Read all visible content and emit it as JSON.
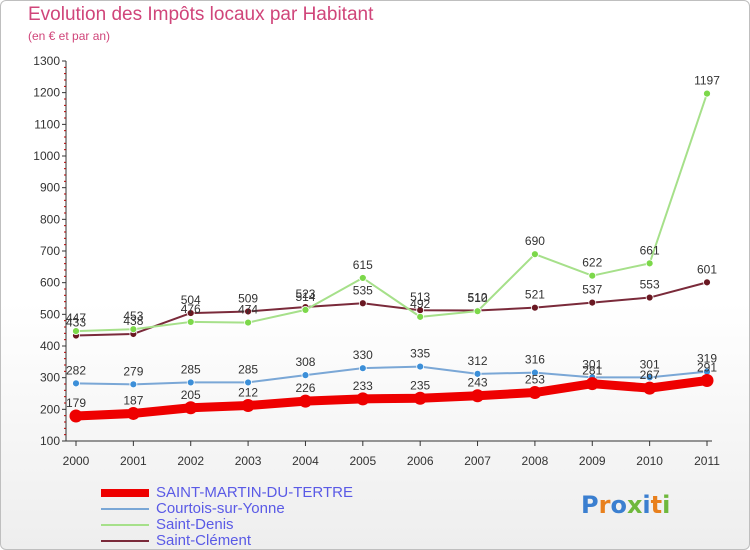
{
  "header": {
    "title": "Evolution des Impôts locaux par Habitant",
    "subtitle": "(en € et par an)"
  },
  "logo": {
    "text": "Proxiti",
    "letter_colors": [
      "#3b7fd0",
      "#e8801d",
      "#3b7fd0",
      "#6fb83c",
      "#3b7fd0",
      "#e8801d",
      "#6fb83c"
    ]
  },
  "chart_data": {
    "type": "line",
    "title": "Evolution des Impôts locaux par Habitant",
    "subtitle": "(en € et par an)",
    "xlabel": "",
    "ylabel": "",
    "x": [
      2000,
      2001,
      2002,
      2003,
      2004,
      2005,
      2006,
      2007,
      2008,
      2009,
      2010,
      2011
    ],
    "ylim": [
      100,
      1300
    ],
    "yticks": [
      100,
      200,
      300,
      400,
      500,
      600,
      700,
      800,
      900,
      1000,
      1100,
      1200,
      1300
    ],
    "grid": false,
    "legend_position": "bottom-left",
    "series": [
      {
        "name": "SAINT-MARTIN-DU-TERTRE",
        "color": "#ee0000",
        "marker_color": "#ee0000",
        "width": 9,
        "values": [
          179,
          187,
          205,
          212,
          226,
          233,
          235,
          243,
          253,
          281,
          267,
          291
        ]
      },
      {
        "name": "Courtois-sur-Yonne",
        "color": "#7aa7d6",
        "marker_color": "#3c8fd8",
        "width": 2,
        "values": [
          282,
          279,
          285,
          285,
          308,
          330,
          335,
          312,
          316,
          301,
          301,
          319
        ]
      },
      {
        "name": "Saint-Denis",
        "color": "#a6e08a",
        "marker_color": "#7cd84a",
        "width": 2,
        "values": [
          447,
          453,
          476,
          474,
          514,
          615,
          492,
          510,
          690,
          622,
          661,
          1197
        ]
      },
      {
        "name": "Saint-Clément",
        "color": "#7a2a3a",
        "marker_color": "#6a1822",
        "width": 2,
        "values": [
          433,
          438,
          504,
          509,
          523,
          535,
          513,
          512,
          521,
          537,
          553,
          601
        ]
      }
    ]
  }
}
